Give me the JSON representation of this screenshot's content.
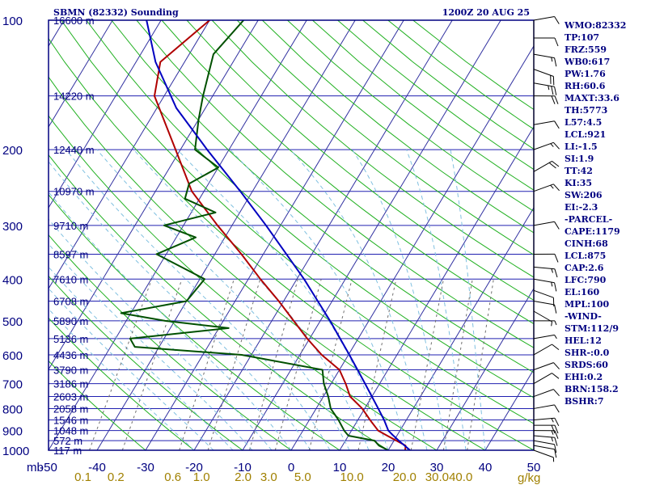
{
  "colors": {
    "frame": "#000080",
    "isobar": "#2020b0",
    "isotherm": "#3030a0",
    "dry_adiabat": "#20b020",
    "moist_adiabat": "#80c0e0",
    "mixing_ratio": "#707070",
    "temperature": "#b00000",
    "dewpoint": "#005000",
    "parcel": "#0000c0",
    "wind": "#000000",
    "mixing_label": "#a08000"
  },
  "chart_data": {
    "type": "line",
    "title_left": "SBMN (82332) Sounding",
    "title_right": "1200Z 20 AUG 25",
    "x_axis_unit": "mb",
    "y_axis_unit": "",
    "x_range": [
      -50,
      50
    ],
    "y_range": [
      100,
      1000
    ],
    "log_pressure_axis": true,
    "pressure_levels": [
      {
        "p": 100,
        "label": "100"
      },
      {
        "p": 150,
        "label": ""
      },
      {
        "p": 200,
        "label": "200"
      },
      {
        "p": 250,
        "label": ""
      },
      {
        "p": 300,
        "label": "300"
      },
      {
        "p": 350,
        "label": ""
      },
      {
        "p": 400,
        "label": "400"
      },
      {
        "p": 450,
        "label": ""
      },
      {
        "p": 500,
        "label": "500"
      },
      {
        "p": 550,
        "label": ""
      },
      {
        "p": 600,
        "label": "600"
      },
      {
        "p": 650,
        "label": ""
      },
      {
        "p": 700,
        "label": "700"
      },
      {
        "p": 750,
        "label": ""
      },
      {
        "p": 800,
        "label": "800"
      },
      {
        "p": 850,
        "label": ""
      },
      {
        "p": 900,
        "label": "900"
      },
      {
        "p": 950,
        "label": ""
      },
      {
        "p": 1000,
        "label": "1000"
      }
    ],
    "heights": [
      {
        "p": 100,
        "label": "16600 m"
      },
      {
        "p": 150,
        "label": "14220 m"
      },
      {
        "p": 200,
        "label": "12440 m"
      },
      {
        "p": 250,
        "label": "10970 m"
      },
      {
        "p": 300,
        "label": "9710 m"
      },
      {
        "p": 350,
        "label": "8597 m"
      },
      {
        "p": 400,
        "label": "7610 m"
      },
      {
        "p": 450,
        "label": "6708 m"
      },
      {
        "p": 500,
        "label": "5890 m"
      },
      {
        "p": 550,
        "label": "5136 m"
      },
      {
        "p": 600,
        "label": "4436 m"
      },
      {
        "p": 650,
        "label": "3790 m"
      },
      {
        "p": 700,
        "label": "3186 m"
      },
      {
        "p": 750,
        "label": "2603 m"
      },
      {
        "p": 800,
        "label": "2058 m"
      },
      {
        "p": 850,
        "label": "1546 m"
      },
      {
        "p": 900,
        "label": "1048 m"
      },
      {
        "p": 950,
        "label": "572 m"
      },
      {
        "p": 1000,
        "label": "117 m"
      }
    ],
    "temperature_ticks": [
      -50,
      -40,
      -30,
      -20,
      -10,
      0,
      10,
      20,
      30,
      40,
      50
    ],
    "mixing_ratio_labels": [
      {
        "w": 0.1,
        "label": "0.1"
      },
      {
        "w": 0.2,
        "label": "0.2"
      },
      {
        "w": 0.6,
        "label": "0.6"
      },
      {
        "w": 1.0,
        "label": "1.0"
      },
      {
        "w": 2.0,
        "label": "2.0"
      },
      {
        "w": 3.0,
        "label": "3.0"
      },
      {
        "w": 5.0,
        "label": "5.0"
      },
      {
        "w": 10.0,
        "label": "10.0"
      },
      {
        "w": 20.0,
        "label": "20.0"
      },
      {
        "w": 30.0,
        "label": "30.0"
      },
      {
        "w": 40.0,
        "label": "40.0"
      }
    ],
    "mixing_unit_label": "g/kg",
    "series": [
      {
        "name": "Temperature",
        "points": [
          [
            1000,
            23.5
          ],
          [
            975,
            23.0
          ],
          [
            950,
            20.5
          ],
          [
            925,
            18.0
          ],
          [
            900,
            15.5
          ],
          [
            850,
            12.5
          ],
          [
            800,
            9.5
          ],
          [
            750,
            5.5
          ],
          [
            700,
            3.0
          ],
          [
            650,
            0.0
          ],
          [
            600,
            -5.5
          ],
          [
            550,
            -10.5
          ],
          [
            500,
            -15.5
          ],
          [
            450,
            -21.0
          ],
          [
            400,
            -27.5
          ],
          [
            350,
            -34.5
          ],
          [
            300,
            -43.0
          ],
          [
            250,
            -52.5
          ],
          [
            200,
            -61.0
          ],
          [
            150,
            -72.0
          ],
          [
            125,
            -75.0
          ],
          [
            100,
            -70.0
          ]
        ]
      },
      {
        "name": "Dewpoint",
        "points": [
          [
            1000,
            20.0
          ],
          [
            975,
            17.5
          ],
          [
            950,
            16.0
          ],
          [
            925,
            10.0
          ],
          [
            900,
            8.5
          ],
          [
            850,
            6.0
          ],
          [
            800,
            3.0
          ],
          [
            750,
            1.0
          ],
          [
            700,
            -1.5
          ],
          [
            650,
            -3.5
          ],
          [
            600,
            -22.0
          ],
          [
            575,
            -45.0
          ],
          [
            550,
            -47.0
          ],
          [
            520,
            -28.0
          ],
          [
            500,
            -42.0
          ],
          [
            480,
            -52.0
          ],
          [
            450,
            -40.0
          ],
          [
            400,
            -39.0
          ],
          [
            350,
            -52.0
          ],
          [
            320,
            -46.0
          ],
          [
            300,
            -54.0
          ],
          [
            280,
            -45.0
          ],
          [
            260,
            -53.0
          ],
          [
            240,
            -54.0
          ],
          [
            220,
            -50.0
          ],
          [
            200,
            -57.0
          ],
          [
            170,
            -60.0
          ],
          [
            150,
            -62.0
          ],
          [
            120,
            -65.0
          ],
          [
            100,
            -63.0
          ]
        ]
      },
      {
        "name": "Parcel",
        "points": [
          [
            1000,
            24.5
          ],
          [
            950,
            21.0
          ],
          [
            921,
            19.0
          ],
          [
            900,
            17.6
          ],
          [
            850,
            15.4
          ],
          [
            800,
            12.8
          ],
          [
            700,
            7.0
          ],
          [
            600,
            0.2
          ],
          [
            500,
            -8.0
          ],
          [
            400,
            -18.5
          ],
          [
            300,
            -33.0
          ],
          [
            250,
            -42.5
          ],
          [
            200,
            -54.5
          ],
          [
            160,
            -66.0
          ],
          [
            125,
            -76.0
          ],
          [
            100,
            -83.0
          ]
        ]
      }
    ],
    "wind_barbs": [
      {
        "p": 1000,
        "dir": 110,
        "spd": 5
      },
      {
        "p": 975,
        "dir": 100,
        "spd": 10
      },
      {
        "p": 950,
        "dir": 100,
        "spd": 10
      },
      {
        "p": 925,
        "dir": 95,
        "spd": 15
      },
      {
        "p": 900,
        "dir": 90,
        "spd": 15
      },
      {
        "p": 875,
        "dir": 90,
        "spd": 20
      },
      {
        "p": 850,
        "dir": 85,
        "spd": 15
      },
      {
        "p": 800,
        "dir": 80,
        "spd": 10
      },
      {
        "p": 750,
        "dir": 70,
        "spd": 10
      },
      {
        "p": 700,
        "dir": 60,
        "spd": 10
      },
      {
        "p": 650,
        "dir": 70,
        "spd": 10
      },
      {
        "p": 600,
        "dir": 60,
        "spd": 10
      },
      {
        "p": 550,
        "dir": 80,
        "spd": 5
      },
      {
        "p": 500,
        "dir": 90,
        "spd": 5
      },
      {
        "p": 475,
        "dir": 120,
        "spd": 5
      },
      {
        "p": 450,
        "dir": 100,
        "spd": 10
      },
      {
        "p": 425,
        "dir": 110,
        "spd": 10
      },
      {
        "p": 400,
        "dir": 100,
        "spd": 15
      },
      {
        "p": 375,
        "dir": 95,
        "spd": 15
      },
      {
        "p": 350,
        "dir": 90,
        "spd": 10
      },
      {
        "p": 300,
        "dir": 80,
        "spd": 10
      },
      {
        "p": 250,
        "dir": 70,
        "spd": 15
      },
      {
        "p": 225,
        "dir": 60,
        "spd": 20
      },
      {
        "p": 200,
        "dir": 70,
        "spd": 15
      },
      {
        "p": 175,
        "dir": 80,
        "spd": 10
      },
      {
        "p": 150,
        "dir": 90,
        "spd": 20
      },
      {
        "p": 140,
        "dir": 100,
        "spd": 25
      },
      {
        "p": 130,
        "dir": 110,
        "spd": 20
      },
      {
        "p": 120,
        "dir": 100,
        "spd": 15
      },
      {
        "p": 110,
        "dir": 90,
        "spd": 10
      },
      {
        "p": 100,
        "dir": 80,
        "spd": 10
      }
    ]
  },
  "indices": [
    "WMO:82332",
    "TP:107",
    "FRZ:559",
    "WB0:617",
    "PW:1.76",
    "RH:60.6",
    "MAXT:33.6",
    "TH:5773",
    "L57:4.5",
    "LCL:921",
    "LI:-1.5",
    "SI:1.9",
    "TT:42",
    "KI:35",
    "SW:206",
    "EI:-2.3",
    "-PARCEL-",
    "CAPE:1179",
    "CINH:68",
    "LCL:875",
    "CAP:2.6",
    "LFC:790",
    "EL:160",
    "MPL:100",
    "-WIND-",
    "STM:112/9",
    "HEL:12",
    "SHR-:0.0",
    "SRDS:60",
    "EHI:0.2",
    "BRN:158.2",
    "BSHR:7"
  ]
}
